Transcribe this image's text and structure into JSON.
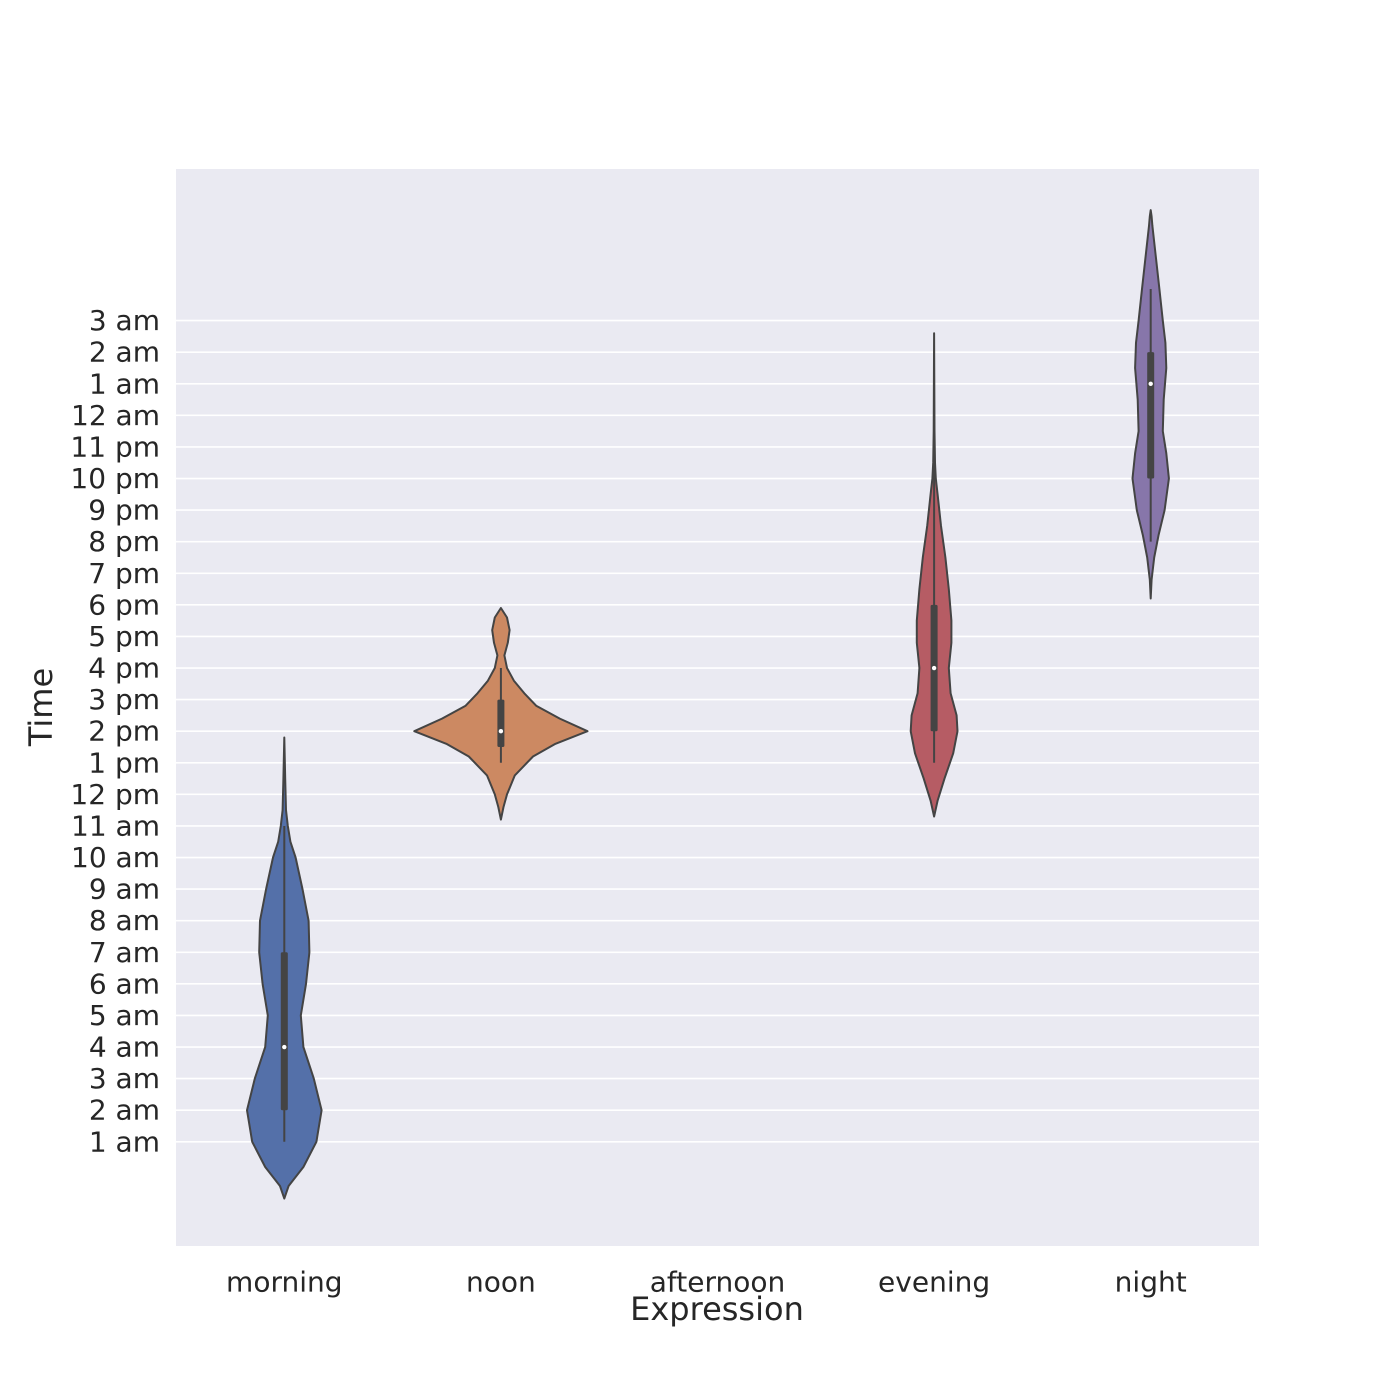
{
  "chart_data": {
    "type": "violin",
    "xlabel": "Expression",
    "ylabel": "Time",
    "categories": [
      "morning",
      "noon",
      "afternoon",
      "evening",
      "night"
    ],
    "y_ticks": [
      {
        "value": 1,
        "label": "1 am"
      },
      {
        "value": 2,
        "label": "2 am"
      },
      {
        "value": 3,
        "label": "3 am"
      },
      {
        "value": 4,
        "label": "4 am"
      },
      {
        "value": 5,
        "label": "5 am"
      },
      {
        "value": 6,
        "label": "6 am"
      },
      {
        "value": 7,
        "label": "7 am"
      },
      {
        "value": 8,
        "label": "8 am"
      },
      {
        "value": 9,
        "label": "9 am"
      },
      {
        "value": 10,
        "label": "10 am"
      },
      {
        "value": 11,
        "label": "11 am"
      },
      {
        "value": 12,
        "label": "12 pm"
      },
      {
        "value": 13,
        "label": "1 pm"
      },
      {
        "value": 14,
        "label": "2 pm"
      },
      {
        "value": 15,
        "label": "3 pm"
      },
      {
        "value": 16,
        "label": "4 pm"
      },
      {
        "value": 17,
        "label": "5 pm"
      },
      {
        "value": 18,
        "label": "6 pm"
      },
      {
        "value": 19,
        "label": "7 pm"
      },
      {
        "value": 20,
        "label": "8 pm"
      },
      {
        "value": 21,
        "label": "9 pm"
      },
      {
        "value": 22,
        "label": "10 pm"
      },
      {
        "value": 23,
        "label": "11 pm"
      },
      {
        "value": 24,
        "label": "12 am"
      },
      {
        "value": 25,
        "label": "1 am"
      },
      {
        "value": 26,
        "label": "2 am"
      },
      {
        "value": 27,
        "label": "3 am"
      }
    ],
    "ylim": [
      -2.3,
      31.8
    ],
    "grid": true,
    "background_color": "#eaeaf2",
    "series": [
      {
        "category": "morning",
        "color": "#5470a9",
        "q1": 2,
        "median": 4,
        "q3": 7,
        "whisker_low": 1,
        "whisker_high": 11,
        "density": [
          [
            -0.8,
            0.0
          ],
          [
            -0.4,
            0.05
          ],
          [
            0.2,
            0.22
          ],
          [
            1.0,
            0.37
          ],
          [
            2.0,
            0.43
          ],
          [
            3.0,
            0.34
          ],
          [
            4.0,
            0.22
          ],
          [
            5.0,
            0.19
          ],
          [
            6.0,
            0.25
          ],
          [
            7.0,
            0.29
          ],
          [
            8.0,
            0.28
          ],
          [
            9.0,
            0.21
          ],
          [
            10.0,
            0.13
          ],
          [
            10.5,
            0.07
          ],
          [
            11.0,
            0.04
          ],
          [
            11.5,
            0.02
          ],
          [
            12.5,
            0.01
          ],
          [
            13.8,
            0.0
          ]
        ]
      },
      {
        "category": "noon",
        "color": "#cc8962",
        "q1": 13.5,
        "median": 14,
        "q3": 15,
        "whisker_low": 13,
        "whisker_high": 16,
        "density": [
          [
            11.2,
            0.0
          ],
          [
            11.6,
            0.03
          ],
          [
            12.0,
            0.07
          ],
          [
            12.6,
            0.16
          ],
          [
            13.2,
            0.37
          ],
          [
            13.6,
            0.63
          ],
          [
            14.0,
            1.0
          ],
          [
            14.4,
            0.68
          ],
          [
            14.8,
            0.41
          ],
          [
            15.2,
            0.27
          ],
          [
            15.6,
            0.15
          ],
          [
            16.0,
            0.07
          ],
          [
            16.4,
            0.04
          ],
          [
            16.8,
            0.08
          ],
          [
            17.2,
            0.1
          ],
          [
            17.6,
            0.07
          ],
          [
            17.9,
            0.0
          ]
        ]
      },
      {
        "category": "evening",
        "color": "#b65c64",
        "q1": 14,
        "median": 16,
        "q3": 18,
        "whisker_low": 13,
        "whisker_high": 23,
        "density": [
          [
            11.3,
            0.0
          ],
          [
            11.8,
            0.04
          ],
          [
            12.5,
            0.12
          ],
          [
            13.3,
            0.22
          ],
          [
            14.0,
            0.27
          ],
          [
            14.5,
            0.26
          ],
          [
            15.2,
            0.19
          ],
          [
            16.0,
            0.17
          ],
          [
            16.8,
            0.2
          ],
          [
            17.5,
            0.2
          ],
          [
            18.5,
            0.17
          ],
          [
            19.5,
            0.13
          ],
          [
            20.5,
            0.08
          ],
          [
            21.5,
            0.04
          ],
          [
            22.0,
            0.02
          ],
          [
            22.5,
            0.01
          ],
          [
            23.5,
            0.005
          ],
          [
            26.6,
            0.0
          ]
        ]
      },
      {
        "category": "night",
        "color": "#8776aa",
        "q1": 22,
        "median": 25,
        "q3": 26,
        "whisker_low": 20,
        "whisker_high": 28,
        "density": [
          [
            18.2,
            0.0
          ],
          [
            18.8,
            0.01
          ],
          [
            19.5,
            0.04
          ],
          [
            20.2,
            0.09
          ],
          [
            21.0,
            0.16
          ],
          [
            22.0,
            0.21
          ],
          [
            22.8,
            0.18
          ],
          [
            23.5,
            0.14
          ],
          [
            24.5,
            0.15
          ],
          [
            25.5,
            0.18
          ],
          [
            26.3,
            0.17
          ],
          [
            27.0,
            0.14
          ],
          [
            28.0,
            0.1
          ],
          [
            29.0,
            0.06
          ],
          [
            30.0,
            0.02
          ],
          [
            30.3,
            0.01
          ],
          [
            30.5,
            0.0
          ]
        ]
      }
    ]
  }
}
